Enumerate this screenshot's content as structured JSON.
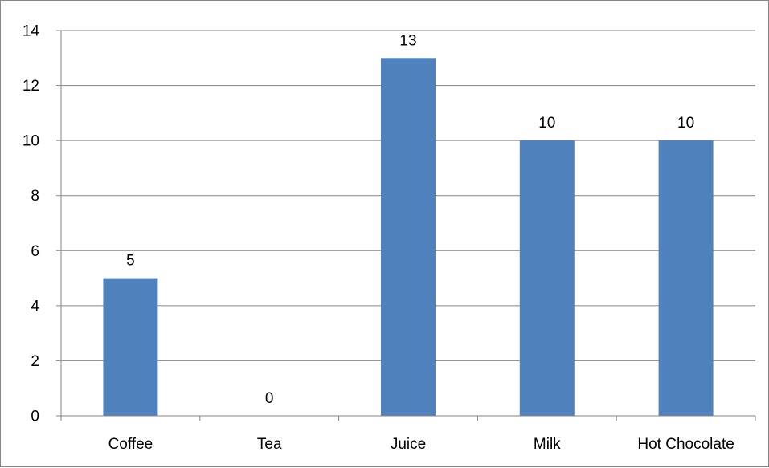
{
  "chart_data": {
    "type": "bar",
    "categories": [
      "Coffee",
      "Tea",
      "Juice",
      "Milk",
      "Hot Chocolate"
    ],
    "values": [
      5,
      0,
      13,
      10,
      10
    ],
    "data_labels": [
      "5",
      "0",
      "13",
      "10",
      "10"
    ],
    "y_ticks": [
      "0",
      "2",
      "4",
      "6",
      "8",
      "10",
      "12",
      "14"
    ],
    "ylim": [
      0,
      14
    ],
    "y_step": 2,
    "grid": true,
    "legend": "none",
    "bar_color": "#4F81BD",
    "grid_color": "#868686",
    "axis_color": "#868686",
    "title": "",
    "xlabel": "",
    "ylabel": ""
  }
}
